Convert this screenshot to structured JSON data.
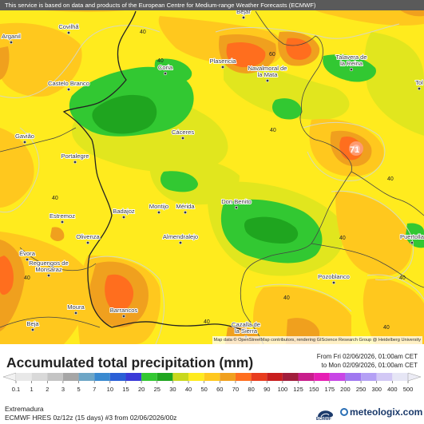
{
  "disclaimer": "This service is based on data and products of the European Centre for Medium-range Weather Forecasts (ECMWF)",
  "attribution": "Map data © OpenStreetMap contributors, rendering GIScience Research Group @ Heidelberg University",
  "legend": {
    "title": "Accumulated total precipitation (mm)",
    "period_from": "From Fri 02/06/2026, 01:00am CET",
    "period_to": "to Mon 02/09/2026, 01:00am CET",
    "ticks": [
      "0.1",
      "1",
      "2",
      "3",
      "5",
      "7",
      "10",
      "15",
      "20",
      "25",
      "30",
      "40",
      "50",
      "60",
      "70",
      "80",
      "90",
      "100",
      "125",
      "150",
      "175",
      "200",
      "250",
      "300",
      "400",
      "500"
    ],
    "colors": [
      "#e8e8e8",
      "#d9d9d9",
      "#c4c4c4",
      "#a6a6a6",
      "#6ea6c6",
      "#3a8ad0",
      "#2a5fd6",
      "#3a3ad8",
      "#32c832",
      "#1fa51f",
      "#c8d81e",
      "#ffeb1e",
      "#ffc81e",
      "#f0a01e",
      "#ff6e1e",
      "#e83c1e",
      "#c81e1e",
      "#a01e3c",
      "#c81e8c",
      "#e61eb4",
      "#c846e6",
      "#a078f0",
      "#b4a0f5",
      "#d2c8f5",
      "#e6e6f5"
    ]
  },
  "region": "Extremadura",
  "model": "ECMWF HRES 0z/12z (15 days) #3 from 02/06/2026/00z",
  "logos": {
    "ecmwf": "ECMWF",
    "meteologix": "meteologix.com"
  },
  "map": {
    "max_value": "71",
    "contour_labels": [
      "40",
      "40",
      "40",
      "40",
      "40",
      "40",
      "40",
      "40",
      "40",
      "40",
      "60",
      "40"
    ],
    "cities": [
      {
        "name": "Covilhã",
        "icon": "city-dot"
      },
      {
        "name": "Arganil",
        "icon": "city-dot"
      },
      {
        "name": "Béjar",
        "icon": "city-dot"
      },
      {
        "name": "Plasencia",
        "icon": "city-dot"
      },
      {
        "name": "Talavera de la Reina",
        "icon": "city-dot"
      },
      {
        "name": "Castelo Branco",
        "icon": "city-dot"
      },
      {
        "name": "Coria",
        "icon": "city-dot"
      },
      {
        "name": "Navalmoral de la Mata",
        "icon": "city-dot"
      },
      {
        "name": "Cáceres",
        "icon": "city-dot"
      },
      {
        "name": "Portalegre",
        "icon": "city-dot"
      },
      {
        "name": "Gavião",
        "icon": "city-dot"
      },
      {
        "name": "Don Benito",
        "icon": "city-dot"
      },
      {
        "name": "Badajoz",
        "icon": "city-dot"
      },
      {
        "name": "Montijo",
        "icon": "city-dot"
      },
      {
        "name": "Mérida",
        "icon": "city-dot"
      },
      {
        "name": "Estremoz",
        "icon": "city-dot"
      },
      {
        "name": "Olivenza",
        "icon": "city-dot"
      },
      {
        "name": "Almendralejo",
        "icon": "city-dot"
      },
      {
        "name": "Évora",
        "icon": "city-dot"
      },
      {
        "name": "Reguengos de Monsaraz",
        "icon": "city-dot"
      },
      {
        "name": "Puertolla",
        "icon": "city-dot"
      },
      {
        "name": "Pozoblanco",
        "icon": "city-dot"
      },
      {
        "name": "Moura",
        "icon": "city-dot"
      },
      {
        "name": "Barrancos",
        "icon": "city-dot"
      },
      {
        "name": "Beja",
        "icon": "city-dot"
      },
      {
        "name": "Cazalla de la Sierra",
        "icon": "city-dot"
      },
      {
        "name": "Tol",
        "icon": "city-dot"
      }
    ]
  }
}
